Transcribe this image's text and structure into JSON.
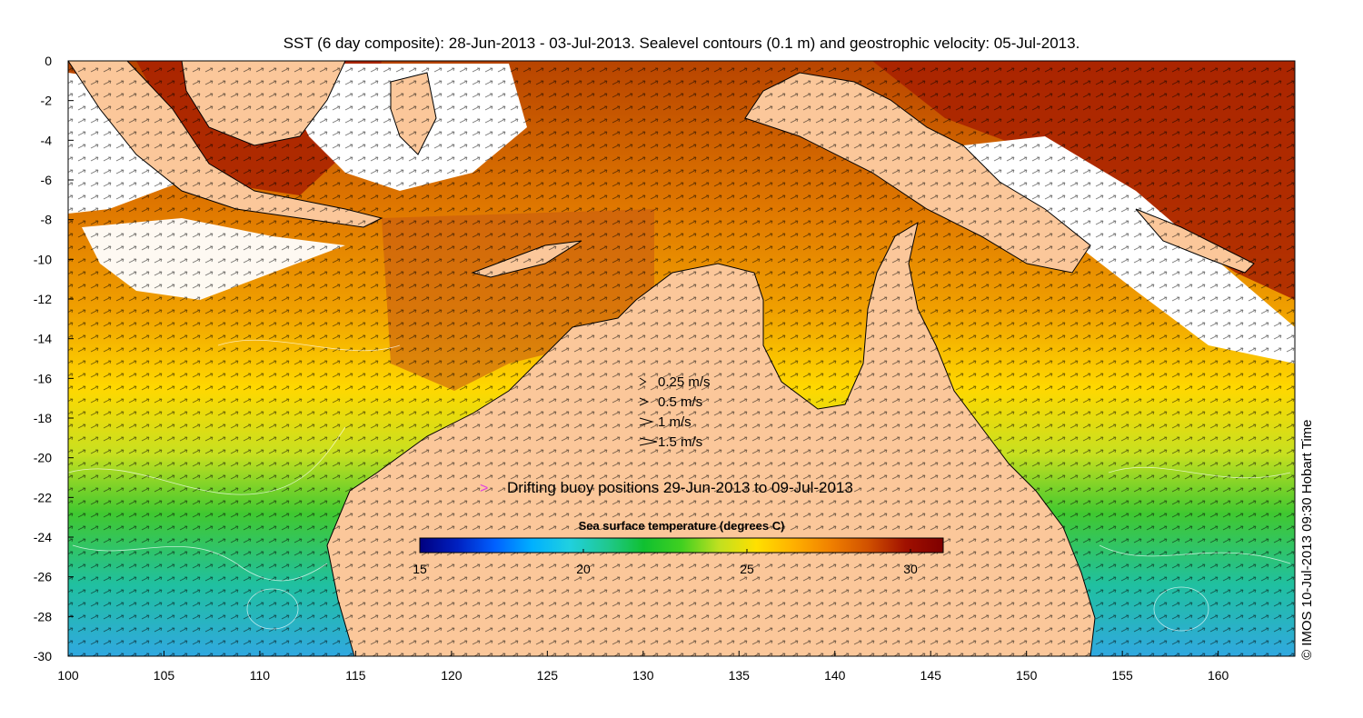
{
  "title": "SST (6 day composite): 28-Jun-2013 - 03-Jul-2013. Sealevel contours (0.1 m) and geostrophic velocity: 05-Jul-2013.",
  "credit": "© IMOS 10-Jul-2013 09:30 Hobart Time",
  "axes": {
    "x_ticks": [
      "100",
      "105",
      "110",
      "115",
      "120",
      "125",
      "130",
      "135",
      "140",
      "145",
      "150",
      "155",
      "160"
    ],
    "y_ticks": [
      "0",
      "-2",
      "-4",
      "-6",
      "-8",
      "-10",
      "-12",
      "-14",
      "-16",
      "-18",
      "-20",
      "-22",
      "-24",
      "-26",
      "-28",
      "-30"
    ],
    "x_range": [
      100,
      164
    ],
    "y_range": [
      -30,
      0
    ]
  },
  "velocity_legend": [
    {
      "label": "0.25 m/s",
      "speed": 0.25
    },
    {
      "label": "0.5 m/s",
      "speed": 0.5
    },
    {
      "label": "1 m/s",
      "speed": 1
    },
    {
      "label": "1.5 m/s",
      "speed": 1.5
    }
  ],
  "buoy_legend": {
    "symbol": ">",
    "label": "Drifting buoy positions 29-Jun-2013 to 09-Jul-2013",
    "color": "#e040e0"
  },
  "colorbar": {
    "title": "Sea surface temperature (degrees C)",
    "min": 15,
    "max": 31,
    "tick_labels": [
      "15",
      "20",
      "25",
      "30"
    ],
    "tick_values": [
      15,
      20,
      25,
      30
    ],
    "colors": [
      "#00007f",
      "#0020c0",
      "#0060ff",
      "#00b0ff",
      "#20d0e0",
      "#20c890",
      "#10c030",
      "#40d020",
      "#c0e020",
      "#ffe000",
      "#ffb000",
      "#f08000",
      "#d05000",
      "#a01000",
      "#7f0000"
    ]
  },
  "colors": {
    "land": "#fbc79a",
    "cloud": "#ffffff",
    "frame": "#000000"
  }
}
